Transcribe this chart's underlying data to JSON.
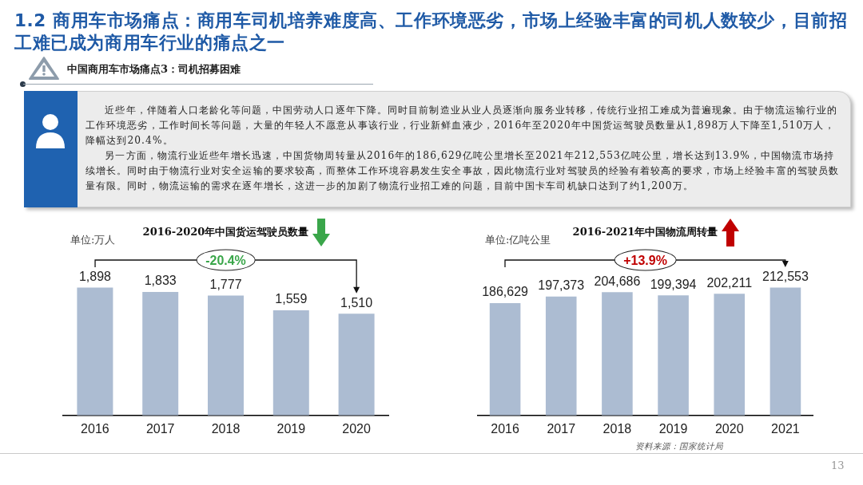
{
  "chart_data": [
    {
      "type": "other",
      "title": "1.2 商用车市场痛点：商用车司机培养难度高、工作环境恶劣，市场上经验丰富的司机人数较少，目前招工难已成为商用车行业的痛点之一",
      "subtitle": "中国商用车市场痛点3：司机招募困难",
      "annotations": [
        "近些年，伴随着人口老龄化等问题，中国劳动人口逐年下降。同时目前制造业从业人员逐渐向服务业转移，传统行业招工难成为普遍现象。由于物流运输行业的工作环境恶劣，工作时间长等问题，大量的年轻人不愿意从事该行业，行业新鲜血液少，2016年至2020年中国货运驾驶员数量从1,898万人下降至1,510万人，降幅达到20.4%。",
        "另一方面，物流行业近些年增长迅速，中国货物周转量从2016年的186,629亿吨公里增长至2021年212,553亿吨公里，增长达到13.9%，中国物流市场持续增长。同时由于物流行业对安全运输的要求较高，而整体工作环境容易发生安全事故，因此物流行业对驾驶员的经验有着较高的要求，市场上经验丰富的驾驶员数量有限。同时，物流运输的需求在逐年增长，这进一步的加剧了物流行业招工难的问题，目前中国卡车司机缺口达到了约1,200万。"
      ]
    },
    {
      "type": "bar",
      "title": "2016-2020年中国货运驾驶员数量",
      "ylabel": "单位:万人",
      "categories": [
        "2016",
        "2017",
        "2018",
        "2019",
        "2020"
      ],
      "values": [
        1898,
        1833,
        1777,
        1559,
        1510
      ],
      "value_labels": [
        "1,898",
        "1,833",
        "1,777",
        "1,559",
        "1,510"
      ],
      "color": "#acbcd2",
      "annotations": [
        "-20.4%"
      ]
    },
    {
      "type": "bar",
      "title": "2016-2021年中国物流周转量",
      "ylabel": "单位:亿吨公里",
      "categories": [
        "2016",
        "2017",
        "2018",
        "2019",
        "2020",
        "2021"
      ],
      "values": [
        186629,
        197373,
        204686,
        199394,
        202211,
        212553
      ],
      "value_labels": [
        "186,629",
        "197,373",
        "204,686",
        "199,394",
        "202,211",
        "212,553"
      ],
      "color": "#acbcd2",
      "annotations": [
        "+13.9%",
        "资料来源：国家统计局",
        "13"
      ]
    }
  ]
}
